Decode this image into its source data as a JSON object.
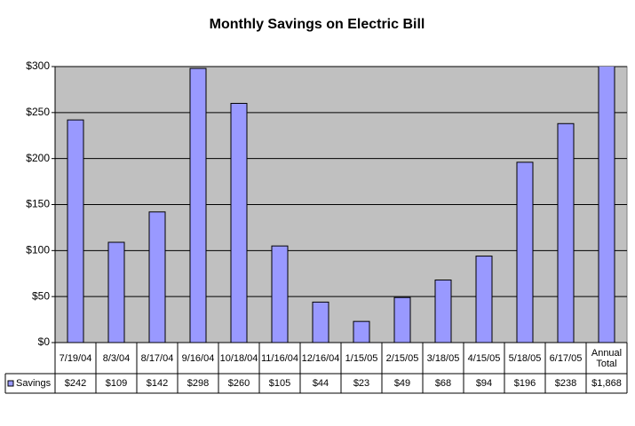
{
  "chart_data": {
    "type": "bar",
    "title": "Monthly Savings on Electric Bill",
    "categories": [
      "7/19/04",
      "8/3/04",
      "8/17/04",
      "9/16/04",
      "10/18/04",
      "11/16/04",
      "12/16/04",
      "1/15/05",
      "2/15/05",
      "3/18/05",
      "4/15/05",
      "5/18/05",
      "6/17/05",
      "Annual Total"
    ],
    "series": [
      {
        "name": "Savings",
        "color": "#9999ff",
        "values": [
          242,
          109,
          142,
          298,
          260,
          105,
          44,
          23,
          49,
          68,
          94,
          196,
          238,
          1868
        ],
        "value_labels": [
          "$242",
          "$109",
          "$142",
          "$298",
          "$260",
          "$105",
          "$44",
          "$23",
          "$49",
          "$68",
          "$94",
          "$196",
          "$238",
          "$1,868"
        ]
      }
    ],
    "ylim": [
      0,
      300
    ],
    "yticks": [
      {
        "value": 0,
        "label": "$0"
      },
      {
        "value": 50,
        "label": "$50"
      },
      {
        "value": 100,
        "label": "$100"
      },
      {
        "value": 150,
        "label": "$150"
      },
      {
        "value": 200,
        "label": "$200"
      },
      {
        "value": 250,
        "label": "$250"
      },
      {
        "value": 300,
        "label": "$300"
      }
    ],
    "grid": true,
    "plot_background": "#c0c0c0"
  }
}
